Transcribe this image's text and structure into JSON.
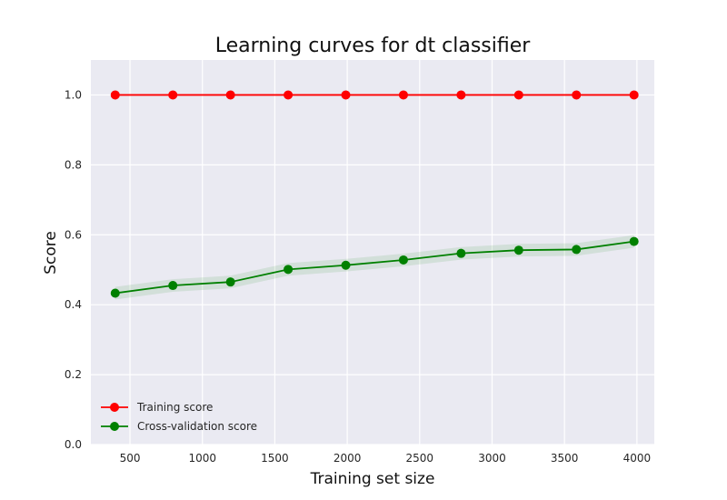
{
  "chart_data": {
    "type": "line",
    "title": "Learning curves for dt classifier",
    "xlabel": "Training set size",
    "ylabel": "Score",
    "xlim": [
      230,
      4120
    ],
    "ylim": [
      0.0,
      1.1
    ],
    "xticks": [
      "500",
      "1000",
      "1500",
      "2000",
      "2500",
      "3000",
      "3500",
      "4000"
    ],
    "yticks": [
      "0.0",
      "0.2",
      "0.4",
      "0.6",
      "0.8",
      "1.0"
    ],
    "grid": true,
    "legend_position": "lower-left",
    "x": [
      398,
      796,
      1194,
      1592,
      1990,
      2388,
      2786,
      3184,
      3582,
      3980
    ],
    "series": [
      {
        "name": "Training score",
        "color": "#ff0000",
        "values": [
          1.0,
          1.0,
          1.0,
          1.0,
          1.0,
          1.0,
          1.0,
          1.0,
          1.0,
          1.0
        ],
        "band": 0.0
      },
      {
        "name": "Cross-validation score",
        "color": "#008000",
        "values": [
          0.433,
          0.455,
          0.465,
          0.501,
          0.513,
          0.528,
          0.547,
          0.556,
          0.558,
          0.581
        ],
        "band": 0.018
      }
    ]
  }
}
